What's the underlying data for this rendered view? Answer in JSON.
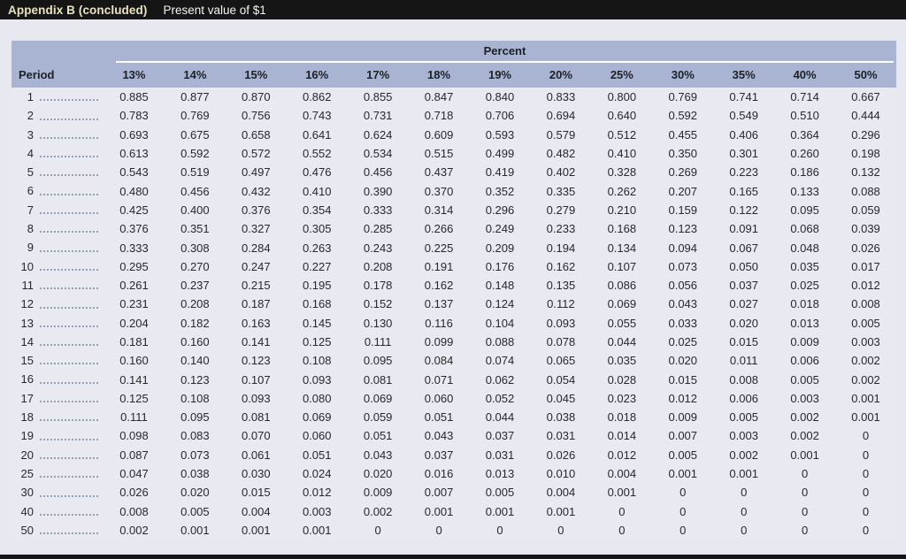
{
  "header": {
    "appendix": "Appendix B (concluded)",
    "subtitle": "Present value of $1"
  },
  "table": {
    "percent_label": "Percent",
    "period_header": "Period",
    "rate_headers": [
      "13%",
      "14%",
      "15%",
      "16%",
      "17%",
      "18%",
      "19%",
      "20%",
      "25%",
      "30%",
      "35%",
      "40%",
      "50%"
    ],
    "rows": [
      {
        "period": "1",
        "values": [
          "0.885",
          "0.877",
          "0.870",
          "0.862",
          "0.855",
          "0.847",
          "0.840",
          "0.833",
          "0.800",
          "0.769",
          "0.741",
          "0.714",
          "0.667"
        ]
      },
      {
        "period": "2",
        "values": [
          "0.783",
          "0.769",
          "0.756",
          "0.743",
          "0.731",
          "0.718",
          "0.706",
          "0.694",
          "0.640",
          "0.592",
          "0.549",
          "0.510",
          "0.444"
        ]
      },
      {
        "period": "3",
        "values": [
          "0.693",
          "0.675",
          "0.658",
          "0.641",
          "0.624",
          "0.609",
          "0.593",
          "0.579",
          "0.512",
          "0.455",
          "0.406",
          "0.364",
          "0.296"
        ]
      },
      {
        "period": "4",
        "values": [
          "0.613",
          "0.592",
          "0.572",
          "0.552",
          "0.534",
          "0.515",
          "0.499",
          "0.482",
          "0.410",
          "0.350",
          "0.301",
          "0.260",
          "0.198"
        ]
      },
      {
        "period": "5",
        "values": [
          "0.543",
          "0.519",
          "0.497",
          "0.476",
          "0.456",
          "0.437",
          "0.419",
          "0.402",
          "0.328",
          "0.269",
          "0.223",
          "0.186",
          "0.132"
        ]
      },
      {
        "period": "6",
        "values": [
          "0.480",
          "0.456",
          "0.432",
          "0.410",
          "0.390",
          "0.370",
          "0.352",
          "0.335",
          "0.262",
          "0.207",
          "0.165",
          "0.133",
          "0.088"
        ]
      },
      {
        "period": "7",
        "values": [
          "0.425",
          "0.400",
          "0.376",
          "0.354",
          "0.333",
          "0.314",
          "0.296",
          "0.279",
          "0.210",
          "0.159",
          "0.122",
          "0.095",
          "0.059"
        ]
      },
      {
        "period": "8",
        "values": [
          "0.376",
          "0.351",
          "0.327",
          "0.305",
          "0.285",
          "0.266",
          "0.249",
          "0.233",
          "0.168",
          "0.123",
          "0.091",
          "0.068",
          "0.039"
        ]
      },
      {
        "period": "9",
        "values": [
          "0.333",
          "0.308",
          "0.284",
          "0.263",
          "0.243",
          "0.225",
          "0.209",
          "0.194",
          "0.134",
          "0.094",
          "0.067",
          "0.048",
          "0.026"
        ]
      },
      {
        "period": "10",
        "values": [
          "0.295",
          "0.270",
          "0.247",
          "0.227",
          "0.208",
          "0.191",
          "0.176",
          "0.162",
          "0.107",
          "0.073",
          "0.050",
          "0.035",
          "0.017"
        ]
      },
      {
        "period": "11",
        "values": [
          "0.261",
          "0.237",
          "0.215",
          "0.195",
          "0.178",
          "0.162",
          "0.148",
          "0.135",
          "0.086",
          "0.056",
          "0.037",
          "0.025",
          "0.012"
        ]
      },
      {
        "period": "12",
        "values": [
          "0.231",
          "0.208",
          "0.187",
          "0.168",
          "0.152",
          "0.137",
          "0.124",
          "0.112",
          "0.069",
          "0.043",
          "0.027",
          "0.018",
          "0.008"
        ]
      },
      {
        "period": "13",
        "values": [
          "0.204",
          "0.182",
          "0.163",
          "0.145",
          "0.130",
          "0.116",
          "0.104",
          "0.093",
          "0.055",
          "0.033",
          "0.020",
          "0.013",
          "0.005"
        ]
      },
      {
        "period": "14",
        "values": [
          "0.181",
          "0.160",
          "0.141",
          "0.125",
          "0.111",
          "0.099",
          "0.088",
          "0.078",
          "0.044",
          "0.025",
          "0.015",
          "0.009",
          "0.003"
        ]
      },
      {
        "period": "15",
        "values": [
          "0.160",
          "0.140",
          "0.123",
          "0.108",
          "0.095",
          "0.084",
          "0.074",
          "0.065",
          "0.035",
          "0.020",
          "0.011",
          "0.006",
          "0.002"
        ]
      },
      {
        "period": "16",
        "values": [
          "0.141",
          "0.123",
          "0.107",
          "0.093",
          "0.081",
          "0.071",
          "0.062",
          "0.054",
          "0.028",
          "0.015",
          "0.008",
          "0.005",
          "0.002"
        ]
      },
      {
        "period": "17",
        "values": [
          "0.125",
          "0.108",
          "0.093",
          "0.080",
          "0.069",
          "0.060",
          "0.052",
          "0.045",
          "0.023",
          "0.012",
          "0.006",
          "0.003",
          "0.001"
        ]
      },
      {
        "period": "18",
        "values": [
          "0.111",
          "0.095",
          "0.081",
          "0.069",
          "0.059",
          "0.051",
          "0.044",
          "0.038",
          "0.018",
          "0.009",
          "0.005",
          "0.002",
          "0.001"
        ]
      },
      {
        "period": "19",
        "values": [
          "0.098",
          "0.083",
          "0.070",
          "0.060",
          "0.051",
          "0.043",
          "0.037",
          "0.031",
          "0.014",
          "0.007",
          "0.003",
          "0.002",
          "0"
        ]
      },
      {
        "period": "20",
        "values": [
          "0.087",
          "0.073",
          "0.061",
          "0.051",
          "0.043",
          "0.037",
          "0.031",
          "0.026",
          "0.012",
          "0.005",
          "0.002",
          "0.001",
          "0"
        ]
      },
      {
        "period": "25",
        "values": [
          "0.047",
          "0.038",
          "0.030",
          "0.024",
          "0.020",
          "0.016",
          "0.013",
          "0.010",
          "0.004",
          "0.001",
          "0.001",
          "0",
          "0"
        ]
      },
      {
        "period": "30",
        "values": [
          "0.026",
          "0.020",
          "0.015",
          "0.012",
          "0.009",
          "0.007",
          "0.005",
          "0.004",
          "0.001",
          "0",
          "0",
          "0",
          "0"
        ]
      },
      {
        "period": "40",
        "values": [
          "0.008",
          "0.005",
          "0.004",
          "0.003",
          "0.002",
          "0.001",
          "0.001",
          "0.001",
          "0",
          "0",
          "0",
          "0",
          "0"
        ]
      },
      {
        "period": "50",
        "values": [
          "0.002",
          "0.001",
          "0.001",
          "0.001",
          "0",
          "0",
          "0",
          "0",
          "0",
          "0",
          "0",
          "0",
          "0"
        ]
      }
    ]
  },
  "colors": {
    "titlebar_bg": "#151515",
    "appendix_text": "#eae3c0",
    "subtitle_text": "#f4f4f4",
    "header_bg": "#a8b4d1",
    "body_bg": "#e9eaf1",
    "page_bg": "#e8e9f0"
  }
}
